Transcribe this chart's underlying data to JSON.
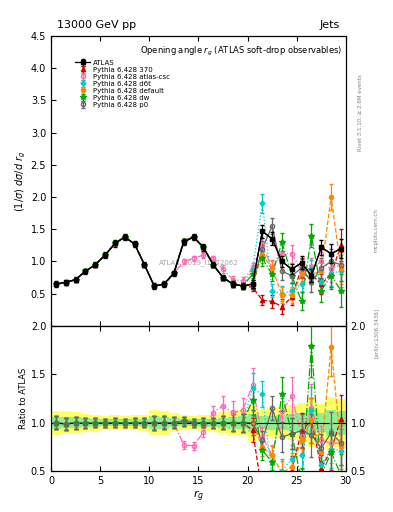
{
  "title_left": "13000 GeV pp",
  "title_right": "Jets",
  "plot_title": "Opening angle $r_g$ (ATLAS soft-drop observables)",
  "ylabel_main": "$(1/\\sigma)$ $d\\sigma/d$ $r_g$",
  "ylabel_ratio": "Ratio to ATLAS",
  "xlabel": "$r_g$",
  "watermark": "ATLAS_2019_I1772062",
  "rivet_text": "Rivet 3.1.10, ≥ 2.6M events",
  "arxiv_text": "[arXiv:1306.3436]",
  "mcplots_text": "mcplots.cern.ch",
  "xlim": [
    0,
    30
  ],
  "ylim_main": [
    0.0,
    4.5
  ],
  "ylim_ratio": [
    0.5,
    2.0
  ],
  "x_data": [
    0.5,
    1.5,
    2.5,
    3.5,
    4.5,
    5.5,
    6.5,
    7.5,
    8.5,
    9.5,
    10.5,
    11.5,
    12.5,
    13.5,
    14.5,
    15.5,
    16.5,
    17.5,
    18.5,
    19.5,
    20.5,
    21.5,
    22.5,
    23.5,
    24.5,
    25.5,
    26.5,
    27.5,
    28.5,
    29.5
  ],
  "atlas_y": [
    0.65,
    0.68,
    0.72,
    0.85,
    0.95,
    1.1,
    1.28,
    1.38,
    1.27,
    0.95,
    0.62,
    0.65,
    0.82,
    1.3,
    1.38,
    1.22,
    0.95,
    0.75,
    0.65,
    0.62,
    0.65,
    1.47,
    1.35,
    1.0,
    0.88,
    0.98,
    0.78,
    1.22,
    1.12,
    1.2
  ],
  "atlas_yerr": [
    0.04,
    0.04,
    0.04,
    0.04,
    0.04,
    0.04,
    0.05,
    0.05,
    0.05,
    0.04,
    0.04,
    0.04,
    0.04,
    0.05,
    0.05,
    0.05,
    0.04,
    0.04,
    0.04,
    0.04,
    0.06,
    0.1,
    0.1,
    0.08,
    0.08,
    0.1,
    0.1,
    0.12,
    0.15,
    0.15
  ],
  "p370_y": [
    0.65,
    0.67,
    0.72,
    0.85,
    0.95,
    1.1,
    1.28,
    1.38,
    1.27,
    0.95,
    0.62,
    0.65,
    0.82,
    1.32,
    1.38,
    1.22,
    0.95,
    0.75,
    0.65,
    0.62,
    0.6,
    0.4,
    0.38,
    0.3,
    0.45,
    0.9,
    0.8,
    0.65,
    0.8,
    1.25
  ],
  "p370_yerr": [
    0.02,
    0.02,
    0.02,
    0.02,
    0.02,
    0.02,
    0.03,
    0.03,
    0.03,
    0.02,
    0.02,
    0.02,
    0.02,
    0.03,
    0.03,
    0.03,
    0.03,
    0.03,
    0.04,
    0.04,
    0.06,
    0.08,
    0.1,
    0.12,
    0.12,
    0.15,
    0.15,
    0.15,
    0.2,
    0.25
  ],
  "patlas_csc_y": [
    0.65,
    0.67,
    0.72,
    0.85,
    0.95,
    1.1,
    1.28,
    1.38,
    1.27,
    0.95,
    0.62,
    0.65,
    0.82,
    1.0,
    1.05,
    1.1,
    1.05,
    0.88,
    0.72,
    0.7,
    0.9,
    1.25,
    0.9,
    1.12,
    1.12,
    0.85,
    0.9,
    1.0,
    0.88,
    0.95
  ],
  "patlas_csc_yerr": [
    0.02,
    0.02,
    0.02,
    0.02,
    0.02,
    0.02,
    0.03,
    0.03,
    0.03,
    0.02,
    0.02,
    0.02,
    0.02,
    0.04,
    0.04,
    0.04,
    0.04,
    0.06,
    0.06,
    0.06,
    0.08,
    0.12,
    0.12,
    0.14,
    0.14,
    0.15,
    0.15,
    0.15,
    0.2,
    0.25
  ],
  "pd6t_y": [
    0.65,
    0.67,
    0.72,
    0.85,
    0.95,
    1.1,
    1.28,
    1.38,
    1.27,
    0.95,
    0.62,
    0.65,
    0.82,
    1.32,
    1.38,
    1.22,
    0.95,
    0.75,
    0.65,
    0.62,
    0.88,
    1.9,
    0.55,
    0.5,
    0.55,
    0.65,
    0.88,
    0.68,
    0.82,
    0.85
  ],
  "pd6t_yerr": [
    0.02,
    0.02,
    0.02,
    0.02,
    0.02,
    0.02,
    0.03,
    0.03,
    0.03,
    0.02,
    0.02,
    0.02,
    0.02,
    0.03,
    0.03,
    0.03,
    0.03,
    0.03,
    0.04,
    0.04,
    0.06,
    0.15,
    0.1,
    0.12,
    0.12,
    0.12,
    0.15,
    0.15,
    0.2,
    0.25
  ],
  "pdefault_y": [
    0.65,
    0.67,
    0.72,
    0.85,
    0.95,
    1.1,
    1.28,
    1.38,
    1.27,
    0.95,
    0.62,
    0.65,
    0.82,
    1.32,
    1.38,
    1.22,
    0.95,
    0.75,
    0.65,
    0.62,
    0.65,
    1.1,
    0.9,
    0.48,
    0.48,
    0.8,
    0.8,
    0.85,
    2.0,
    0.9
  ],
  "pdefault_yerr": [
    0.02,
    0.02,
    0.02,
    0.02,
    0.02,
    0.02,
    0.03,
    0.03,
    0.03,
    0.02,
    0.02,
    0.02,
    0.02,
    0.03,
    0.03,
    0.03,
    0.03,
    0.03,
    0.04,
    0.04,
    0.06,
    0.12,
    0.1,
    0.12,
    0.12,
    0.14,
    0.15,
    0.15,
    0.2,
    0.25
  ],
  "pdw_y": [
    0.65,
    0.67,
    0.72,
    0.85,
    0.95,
    1.1,
    1.28,
    1.38,
    1.27,
    0.95,
    0.62,
    0.65,
    0.82,
    1.32,
    1.38,
    1.22,
    0.95,
    0.75,
    0.65,
    0.62,
    0.8,
    1.05,
    0.8,
    1.3,
    0.78,
    0.38,
    1.4,
    0.55,
    0.78,
    0.55
  ],
  "pdw_yerr": [
    0.02,
    0.02,
    0.02,
    0.02,
    0.02,
    0.02,
    0.03,
    0.03,
    0.03,
    0.02,
    0.02,
    0.02,
    0.02,
    0.03,
    0.03,
    0.03,
    0.03,
    0.03,
    0.04,
    0.04,
    0.06,
    0.12,
    0.1,
    0.14,
    0.12,
    0.14,
    0.18,
    0.18,
    0.2,
    0.25
  ],
  "pp0_y": [
    0.65,
    0.67,
    0.72,
    0.85,
    0.95,
    1.1,
    1.28,
    1.38,
    1.27,
    0.95,
    0.62,
    0.65,
    0.82,
    1.32,
    1.38,
    1.22,
    0.95,
    0.75,
    0.65,
    0.62,
    0.65,
    1.2,
    1.55,
    0.85,
    0.78,
    0.9,
    0.68,
    0.9,
    1.0,
    0.95
  ],
  "pp0_yerr": [
    0.02,
    0.02,
    0.02,
    0.02,
    0.02,
    0.02,
    0.03,
    0.03,
    0.03,
    0.02,
    0.02,
    0.02,
    0.02,
    0.03,
    0.03,
    0.03,
    0.03,
    0.03,
    0.04,
    0.04,
    0.06,
    0.12,
    0.12,
    0.14,
    0.12,
    0.14,
    0.15,
    0.15,
    0.2,
    0.25
  ],
  "color_atlas": "#000000",
  "color_p370": "#cc0000",
  "color_patlas_csc": "#ff69b4",
  "color_pd6t": "#00cccc",
  "color_pdefault": "#ff8800",
  "color_pdw": "#00aa00",
  "color_pp0": "#666666",
  "band_green": "#90ee90",
  "band_yellow": "#ffff66",
  "xticks": [
    0,
    5,
    10,
    15,
    20,
    25,
    30
  ],
  "yticks_main": [
    0.5,
    1.0,
    1.5,
    2.0,
    2.5,
    3.0,
    3.5,
    4.0,
    4.5
  ],
  "yticks_ratio": [
    0.5,
    1.0,
    1.5,
    2.0
  ]
}
